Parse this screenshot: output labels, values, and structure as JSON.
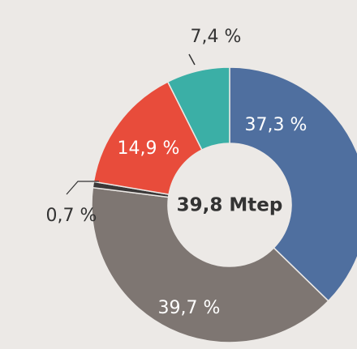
{
  "chart_data": {
    "type": "donut",
    "center_label": "39,8 Mtep",
    "values": [
      37.3,
      39.7,
      0.7,
      14.9,
      7.4
    ],
    "value_labels": [
      "37,3 %",
      "39,7 %",
      "0,7 %",
      "14,9 %",
      "7,4 %"
    ],
    "colors": [
      "#4f6f9f",
      "#7e7672",
      "#3b3838",
      "#e84c3b",
      "#3bafa6"
    ]
  }
}
